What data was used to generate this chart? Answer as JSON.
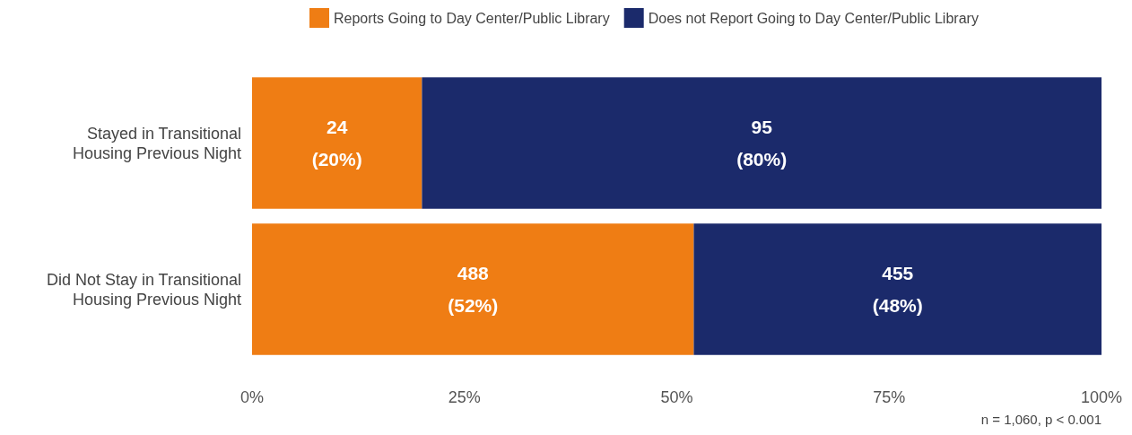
{
  "chart_data": {
    "type": "bar",
    "orientation": "horizontal",
    "stacked": true,
    "categories": [
      "Stayed in Transitional\nHousing Previous Night",
      "Did Not Stay in Transitional\nHousing Previous Night"
    ],
    "series": [
      {
        "name": "Reports Going to Day Center/Public Library",
        "color": "#ef7d14",
        "values": [
          20,
          52
        ],
        "value_labels": [
          "24\n(20%)",
          "488\n(52%)"
        ]
      },
      {
        "name": "Does not Report Going to Day Center/Public Library",
        "color": "#1b2a6b",
        "values": [
          80,
          48
        ],
        "value_labels": [
          "95\n(80%)",
          "455\n(48%)"
        ]
      }
    ],
    "xlim": [
      0,
      100
    ],
    "xticks": [
      {
        "value": 0,
        "label": "0%"
      },
      {
        "value": 25,
        "label": "25%"
      },
      {
        "value": 50,
        "label": "50%"
      },
      {
        "value": 75,
        "label": "75%"
      },
      {
        "value": 100,
        "label": "100%"
      }
    ],
    "grid": false,
    "legend": "top",
    "annotations": [
      "n = 1,060, p < 0.001"
    ]
  }
}
